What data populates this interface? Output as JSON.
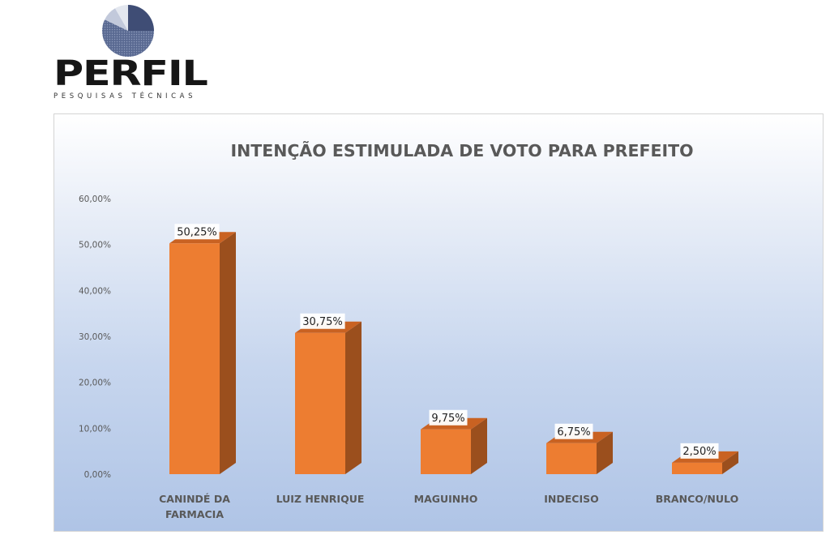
{
  "logo": {
    "name": "PERFIL",
    "tagline": "PESQUISAS TÉCNICAS"
  },
  "colors": {
    "bar_front": "#ed7d31",
    "bar_side": "#9b4f1d",
    "bar_top": "#c96222",
    "logo_pie_dark": "#4e5d83",
    "logo_pie_light": "#b5bfd6"
  },
  "chart_data": {
    "type": "bar",
    "title": "INTENÇÃO ESTIMULADA DE VOTO PARA PREFEITO",
    "categories": [
      "CANINDÉ DA FARMACIA",
      "LUIZ HENRIQUE",
      "MAGUINHO",
      "INDECISO",
      "BRANCO/NULO"
    ],
    "category_lines": [
      [
        "CANINDÉ DA",
        "FARMACIA"
      ],
      [
        "LUIZ HENRIQUE"
      ],
      [
        "MAGUINHO"
      ],
      [
        "INDECISO"
      ],
      [
        "BRANCO/NULO"
      ]
    ],
    "values": [
      50.25,
      30.75,
      9.75,
      6.75,
      2.5
    ],
    "value_labels": [
      "50,25%",
      "30,75%",
      "9,75%",
      "6,75%",
      "2,50%"
    ],
    "ylim": [
      0,
      60
    ],
    "yticks": [
      0,
      10,
      20,
      30,
      40,
      50,
      60
    ],
    "ytick_labels": [
      "0,00%",
      "10,00%",
      "20,00%",
      "30,00%",
      "40,00%",
      "50,00%",
      "60,00%"
    ],
    "grid": false,
    "legend": "none",
    "style": "3d-column"
  }
}
